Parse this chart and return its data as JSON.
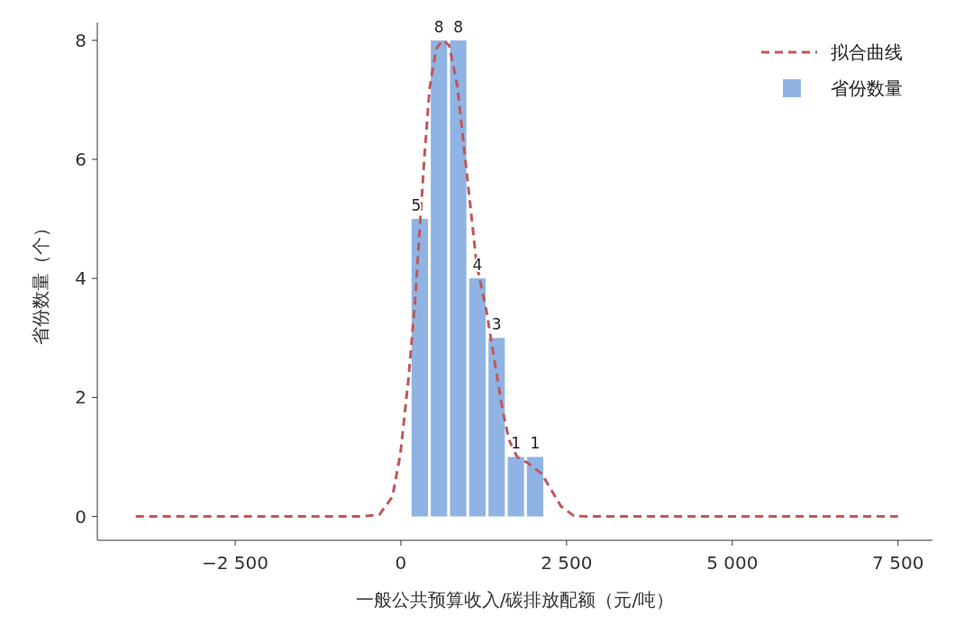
{
  "chart_data": {
    "type": "histogram",
    "xlabel": "一般公共预算收入/碳排放配额（元/吨）",
    "ylabel": "省份数量（个）",
    "bins": [
      140,
      430,
      720,
      1010,
      1300,
      1590,
      1880,
      2170
    ],
    "series": [
      {
        "name": "拟合曲线",
        "type": "line",
        "color": "#c0585a",
        "line_style": "dashed",
        "x": [
          -4000,
          -617,
          -324,
          -128,
          -6,
          117,
          214,
          288,
          361,
          434,
          532,
          630,
          728,
          850,
          948,
          1046,
          1143,
          1290,
          1437,
          1535,
          1633,
          1755,
          1926,
          2122,
          2268,
          2415,
          2610,
          2806,
          7500
        ],
        "values": [
          0,
          0,
          0.03,
          0.33,
          1.06,
          2.34,
          3.62,
          4.9,
          6.13,
          7.19,
          7.86,
          8.0,
          7.92,
          7.25,
          6.24,
          5.24,
          4.24,
          3.46,
          2.45,
          1.78,
          1.28,
          1.0,
          0.89,
          0.72,
          0.45,
          0.17,
          0.01,
          0,
          0
        ]
      },
      {
        "name": "省份数量",
        "color": "#8fb4e3",
        "values": [
          5,
          8,
          8,
          4,
          3,
          1,
          1
        ],
        "value_labels": [
          "5",
          "8",
          "8",
          "4",
          "3",
          "1",
          "1"
        ]
      }
    ],
    "legend": "top right",
    "xlim": [
      -4580,
      8020
    ],
    "xticks": [
      {
        "value": -2500,
        "label": "−2 500"
      },
      0,
      {
        "value": 2500,
        "label": "2 500"
      },
      {
        "value": 5000,
        "label": "5 000"
      },
      {
        "value": 7500,
        "label": "7 500"
      }
    ],
    "ylim": [
      -0.4,
      8.3
    ],
    "yticks": [
      0,
      2,
      4,
      6,
      8
    ]
  }
}
